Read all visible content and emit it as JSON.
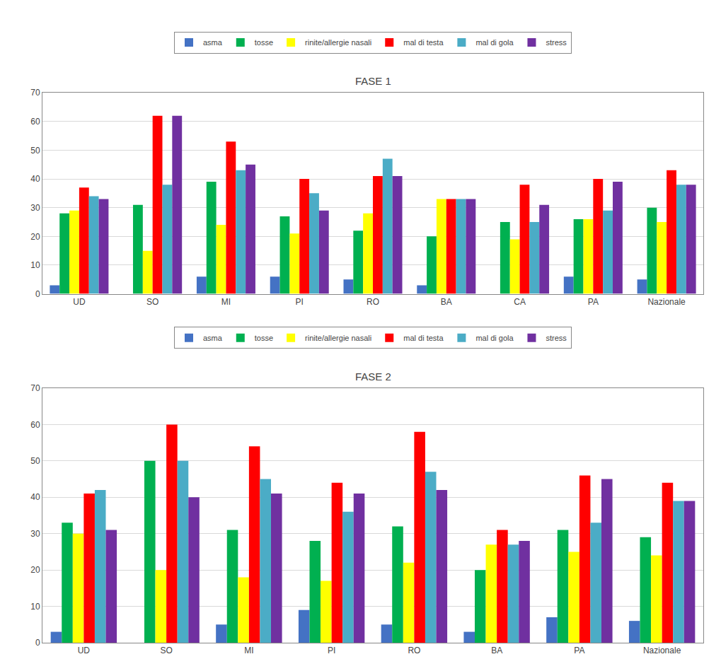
{
  "chart_data": [
    {
      "type": "bar",
      "title": "FASE 1",
      "categories": [
        "UD",
        "SO",
        "MI",
        "PI",
        "RO",
        "BA",
        "CA",
        "PA",
        "Nazionale"
      ],
      "series": [
        {
          "name": "asma",
          "color": "#4472C4",
          "values": [
            3,
            0,
            6,
            6,
            5,
            3,
            0,
            6,
            5
          ]
        },
        {
          "name": "tosse",
          "color": "#00B050",
          "values": [
            28,
            31,
            39,
            27,
            22,
            20,
            25,
            26,
            30
          ]
        },
        {
          "name": "rinite/allergie nasali",
          "color": "#FFFF00",
          "values": [
            29,
            15,
            24,
            21,
            28,
            33,
            19,
            26,
            25
          ]
        },
        {
          "name": "mal di testa",
          "color": "#FF0000",
          "values": [
            37,
            62,
            53,
            40,
            41,
            33,
            38,
            40,
            43
          ]
        },
        {
          "name": "mal di gola",
          "color": "#4BACC6",
          "values": [
            34,
            38,
            43,
            35,
            47,
            33,
            25,
            29,
            38
          ]
        },
        {
          "name": "stress",
          "color": "#7030A0",
          "values": [
            33,
            62,
            45,
            29,
            41,
            33,
            31,
            39,
            38
          ]
        }
      ],
      "ylim": [
        0,
        70
      ],
      "yticks": [
        0,
        10,
        20,
        30,
        40,
        50,
        60,
        70
      ],
      "grid": true,
      "legend": "top"
    },
    {
      "type": "bar",
      "title": "FASE 2",
      "categories": [
        "UD",
        "SO",
        "MI",
        "PI",
        "RO",
        "BA",
        "PA",
        "Nazionale"
      ],
      "series": [
        {
          "name": "asma",
          "color": "#4472C4",
          "values": [
            3,
            0,
            5,
            9,
            5,
            3,
            7,
            6
          ]
        },
        {
          "name": "tosse",
          "color": "#00B050",
          "values": [
            33,
            50,
            31,
            28,
            32,
            20,
            31,
            29
          ]
        },
        {
          "name": "rinite/allergie nasali",
          "color": "#FFFF00",
          "values": [
            30,
            20,
            18,
            17,
            22,
            27,
            25,
            24
          ]
        },
        {
          "name": "mal di testa",
          "color": "#FF0000",
          "values": [
            41,
            60,
            54,
            44,
            58,
            31,
            46,
            44
          ]
        },
        {
          "name": "mal di gola",
          "color": "#4BACC6",
          "values": [
            42,
            50,
            45,
            36,
            47,
            27,
            33,
            39
          ]
        },
        {
          "name": "stress",
          "color": "#7030A0",
          "values": [
            31,
            40,
            41,
            41,
            42,
            28,
            45,
            39
          ]
        }
      ],
      "ylim": [
        0,
        70
      ],
      "yticks": [
        0,
        10,
        20,
        30,
        40,
        50,
        60,
        70
      ],
      "grid": true,
      "legend": "top"
    }
  ]
}
